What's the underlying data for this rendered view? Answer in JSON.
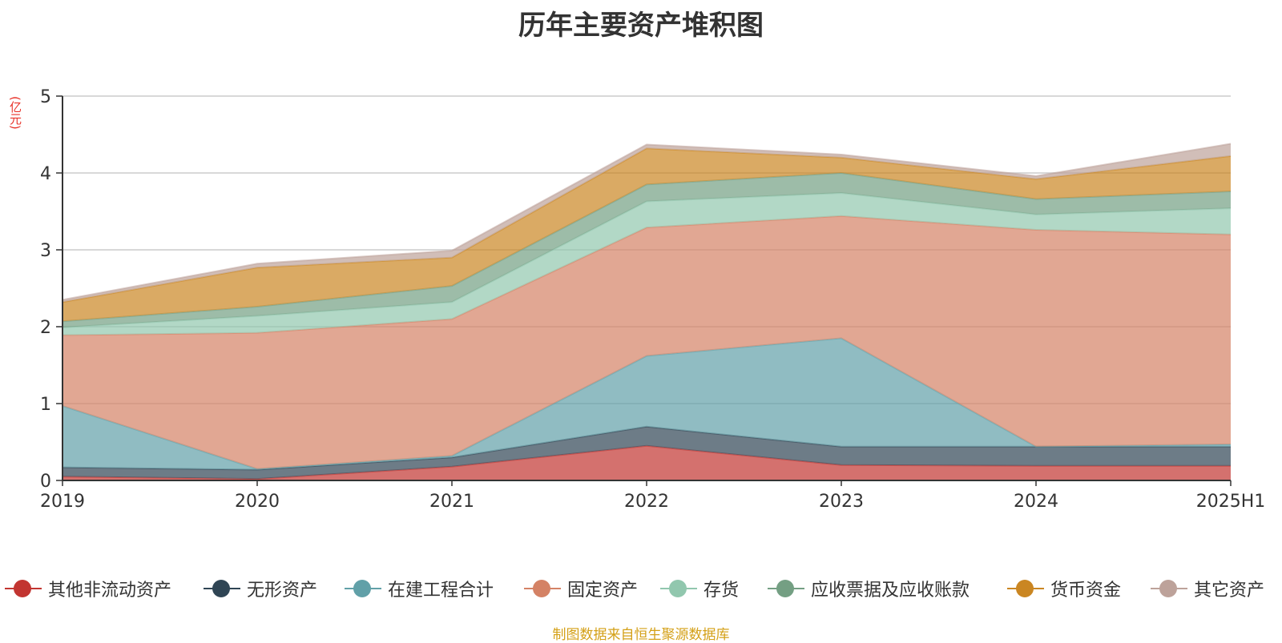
{
  "chart_data": {
    "type": "area",
    "title": "历年主要资产堆积图",
    "unit": "(亿元)",
    "categories": [
      "2019",
      "2020",
      "2021",
      "2022",
      "2023",
      "2024",
      "2025H1"
    ],
    "ylim": [
      0,
      5
    ],
    "yticks": [
      "0",
      "1",
      "2",
      "3",
      "4",
      "5"
    ],
    "grid": true,
    "stacked": true,
    "legend_position": "bottom",
    "series": [
      {
        "name": "其他非流动资产",
        "color": "#c23531",
        "values": [
          0.05,
          0.02,
          0.18,
          0.45,
          0.2,
          0.19,
          0.19
        ]
      },
      {
        "name": "无形资产",
        "color": "#2f4554",
        "values": [
          0.12,
          0.12,
          0.12,
          0.25,
          0.24,
          0.25,
          0.25
        ]
      },
      {
        "name": "在建工程合计",
        "color": "#61a0a8",
        "values": [
          0.8,
          0.01,
          0.02,
          0.92,
          1.41,
          0.0,
          0.03
        ]
      },
      {
        "name": "固定资产",
        "color": "#d48265",
        "values": [
          0.92,
          1.77,
          1.78,
          1.67,
          1.59,
          2.82,
          2.73
        ]
      },
      {
        "name": "存货",
        "color": "#91c7ae",
        "values": [
          0.1,
          0.22,
          0.22,
          0.34,
          0.3,
          0.2,
          0.34
        ]
      },
      {
        "name": "应收票据及应收账款",
        "color": "#749f83",
        "values": [
          0.08,
          0.12,
          0.21,
          0.22,
          0.26,
          0.2,
          0.22
        ]
      },
      {
        "name": "货币资金",
        "color": "#ca8622",
        "values": [
          0.25,
          0.51,
          0.37,
          0.47,
          0.2,
          0.26,
          0.46
        ]
      },
      {
        "name": "其它资产",
        "color": "#bda29a",
        "values": [
          0.03,
          0.05,
          0.09,
          0.05,
          0.04,
          0.04,
          0.16
        ]
      }
    ]
  },
  "source_note": "制图数据来自恒生聚源数据库"
}
